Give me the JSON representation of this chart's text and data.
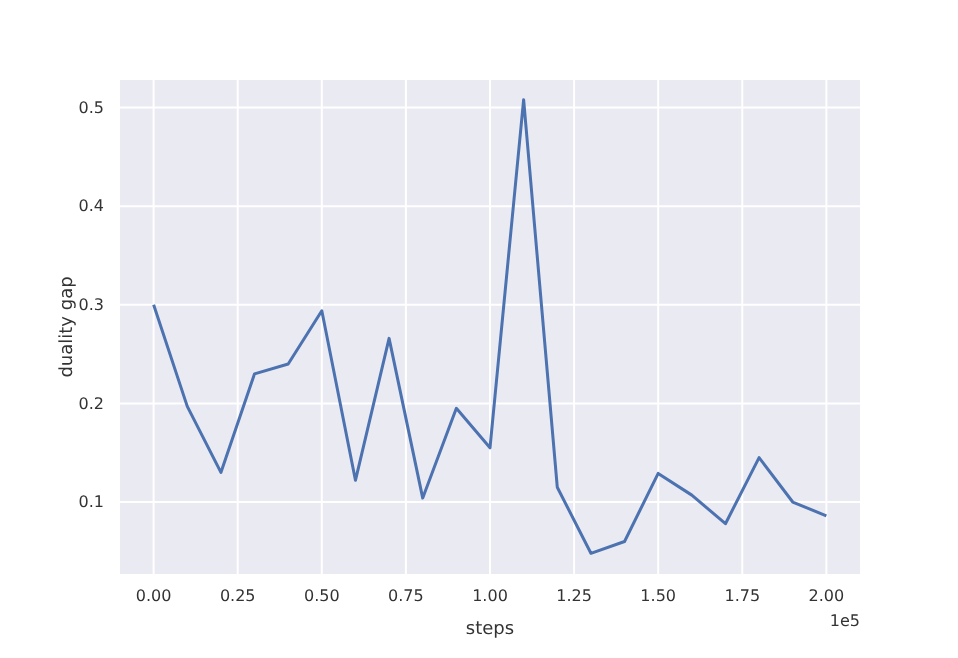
{
  "chart_data": {
    "type": "line",
    "xlabel": "steps",
    "ylabel": "duality gap",
    "annotations": [
      "1e5"
    ],
    "x": [
      0,
      0.1,
      0.2,
      0.3,
      0.4,
      0.5,
      0.6,
      0.7,
      0.8,
      0.9,
      1.0,
      1.1,
      1.2,
      1.3,
      1.4,
      1.5,
      1.6,
      1.7,
      1.8,
      1.9,
      2.0
    ],
    "series": [
      {
        "color": "#4c72b0",
        "values": [
          0.3,
          0.197,
          0.13,
          0.23,
          0.24,
          0.294,
          0.122,
          0.266,
          0.104,
          0.195,
          0.155,
          0.508,
          0.115,
          0.048,
          0.06,
          0.129,
          0.107,
          0.078,
          0.145,
          0.1,
          0.086
        ]
      }
    ],
    "xlim": [
      -0.1,
      2.1
    ],
    "ylim": [
      0.027,
      0.528
    ],
    "xticks": [
      {
        "value": 0,
        "label": "0.00"
      },
      {
        "value": 0.25,
        "label": "0.25"
      },
      {
        "value": 0.5,
        "label": "0.50"
      },
      {
        "value": 0.75,
        "label": "0.75"
      },
      {
        "value": 1,
        "label": "1.00"
      },
      {
        "value": 1.25,
        "label": "1.25"
      },
      {
        "value": 1.5,
        "label": "1.50"
      },
      {
        "value": 1.75,
        "label": "1.75"
      },
      {
        "value": 2,
        "label": "2.00"
      }
    ],
    "yticks": [
      0.1,
      0.2,
      0.3,
      0.4,
      0.5
    ],
    "grid": true,
    "line_style": "solid"
  }
}
